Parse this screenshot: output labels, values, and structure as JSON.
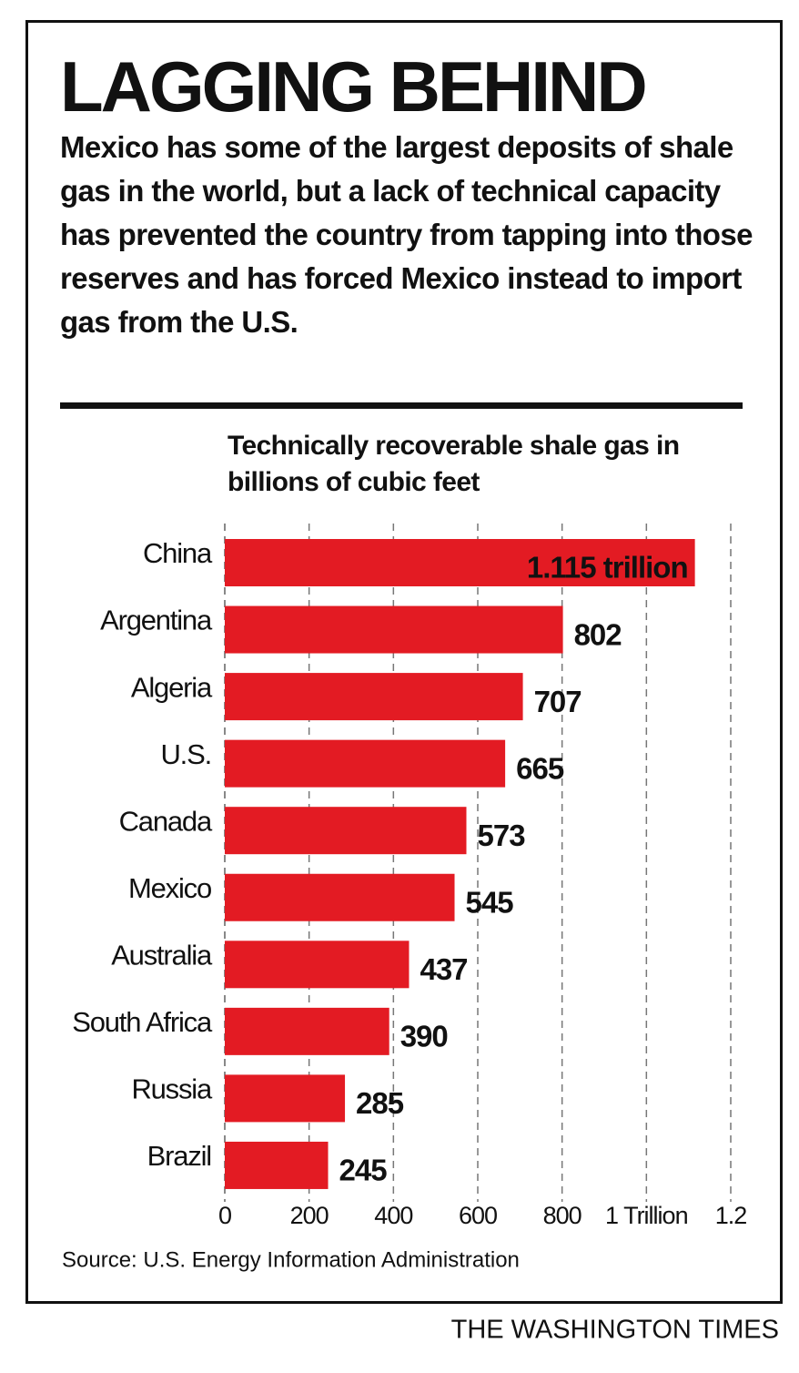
{
  "chart_data": {
    "type": "barh",
    "title": "LAGGING BEHIND",
    "subtitle": "Mexico has some of the largest deposits of shale gas in the world, but a lack of technical capacity has prevented the country from tapping into those reserves and has forced Mexico instead to import gas from the U.S.",
    "axis_label": "Technically recoverable shale gas in billions of cubic feet",
    "categories": [
      "China",
      "Argentina",
      "Algeria",
      "U.S.",
      "Canada",
      "Mexico",
      "Australia",
      "South Africa",
      "Russia",
      "Brazil"
    ],
    "values": [
      1115,
      802,
      707,
      665,
      573,
      545,
      437,
      390,
      285,
      245
    ],
    "value_labels": [
      "1.115 trillion",
      "802",
      "707",
      "665",
      "573",
      "545",
      "437",
      "390",
      "285",
      "245"
    ],
    "color": "#e31b23",
    "xlim": [
      0,
      1200
    ],
    "xticks": [
      0,
      200,
      400,
      600,
      800,
      {
        "value": 1000,
        "label": "1 Trillion"
      },
      {
        "value": 1200,
        "label": "1.2"
      }
    ],
    "grid": true,
    "source": "Source: U.S. Energy Information Administration",
    "credit": "THE WASHINGTON TIMES"
  }
}
